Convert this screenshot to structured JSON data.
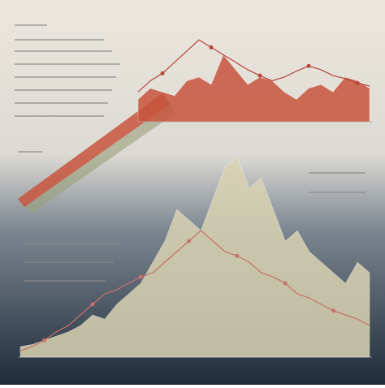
{
  "chart_data": [
    {
      "type": "area",
      "ylim": [
        0,
        120
      ],
      "series": [
        {
          "color": "#c8553d",
          "values": [
            30,
            45,
            40,
            35,
            55,
            60,
            50,
            90,
            70,
            50,
            60,
            55,
            40,
            30,
            45,
            50,
            40,
            60,
            55,
            45
          ]
        },
        {
          "color": "#b8453a",
          "line": true,
          "values": [
            40,
            55,
            65,
            80,
            95,
            110,
            100,
            90,
            80,
            70,
            62,
            55,
            60,
            68,
            75,
            70,
            62,
            58,
            52,
            48
          ]
        }
      ]
    },
    {
      "type": "area",
      "ylim": [
        0,
        100
      ],
      "series": [
        {
          "color": "#d9d3b2",
          "values": [
            5,
            6,
            8,
            10,
            12,
            15,
            20,
            18,
            25,
            30,
            35,
            45,
            55,
            70,
            65,
            60,
            75,
            90,
            95,
            80,
            85,
            70,
            55,
            60,
            50,
            45,
            40,
            35,
            45,
            40
          ]
        },
        {
          "color": "#c8706a",
          "line": true,
          "values": [
            3,
            5,
            8,
            12,
            15,
            20,
            25,
            30,
            32,
            35,
            38,
            40,
            45,
            50,
            55,
            60,
            55,
            50,
            48,
            45,
            40,
            38,
            35,
            30,
            28,
            25,
            22,
            20,
            18,
            15
          ]
        }
      ]
    }
  ]
}
